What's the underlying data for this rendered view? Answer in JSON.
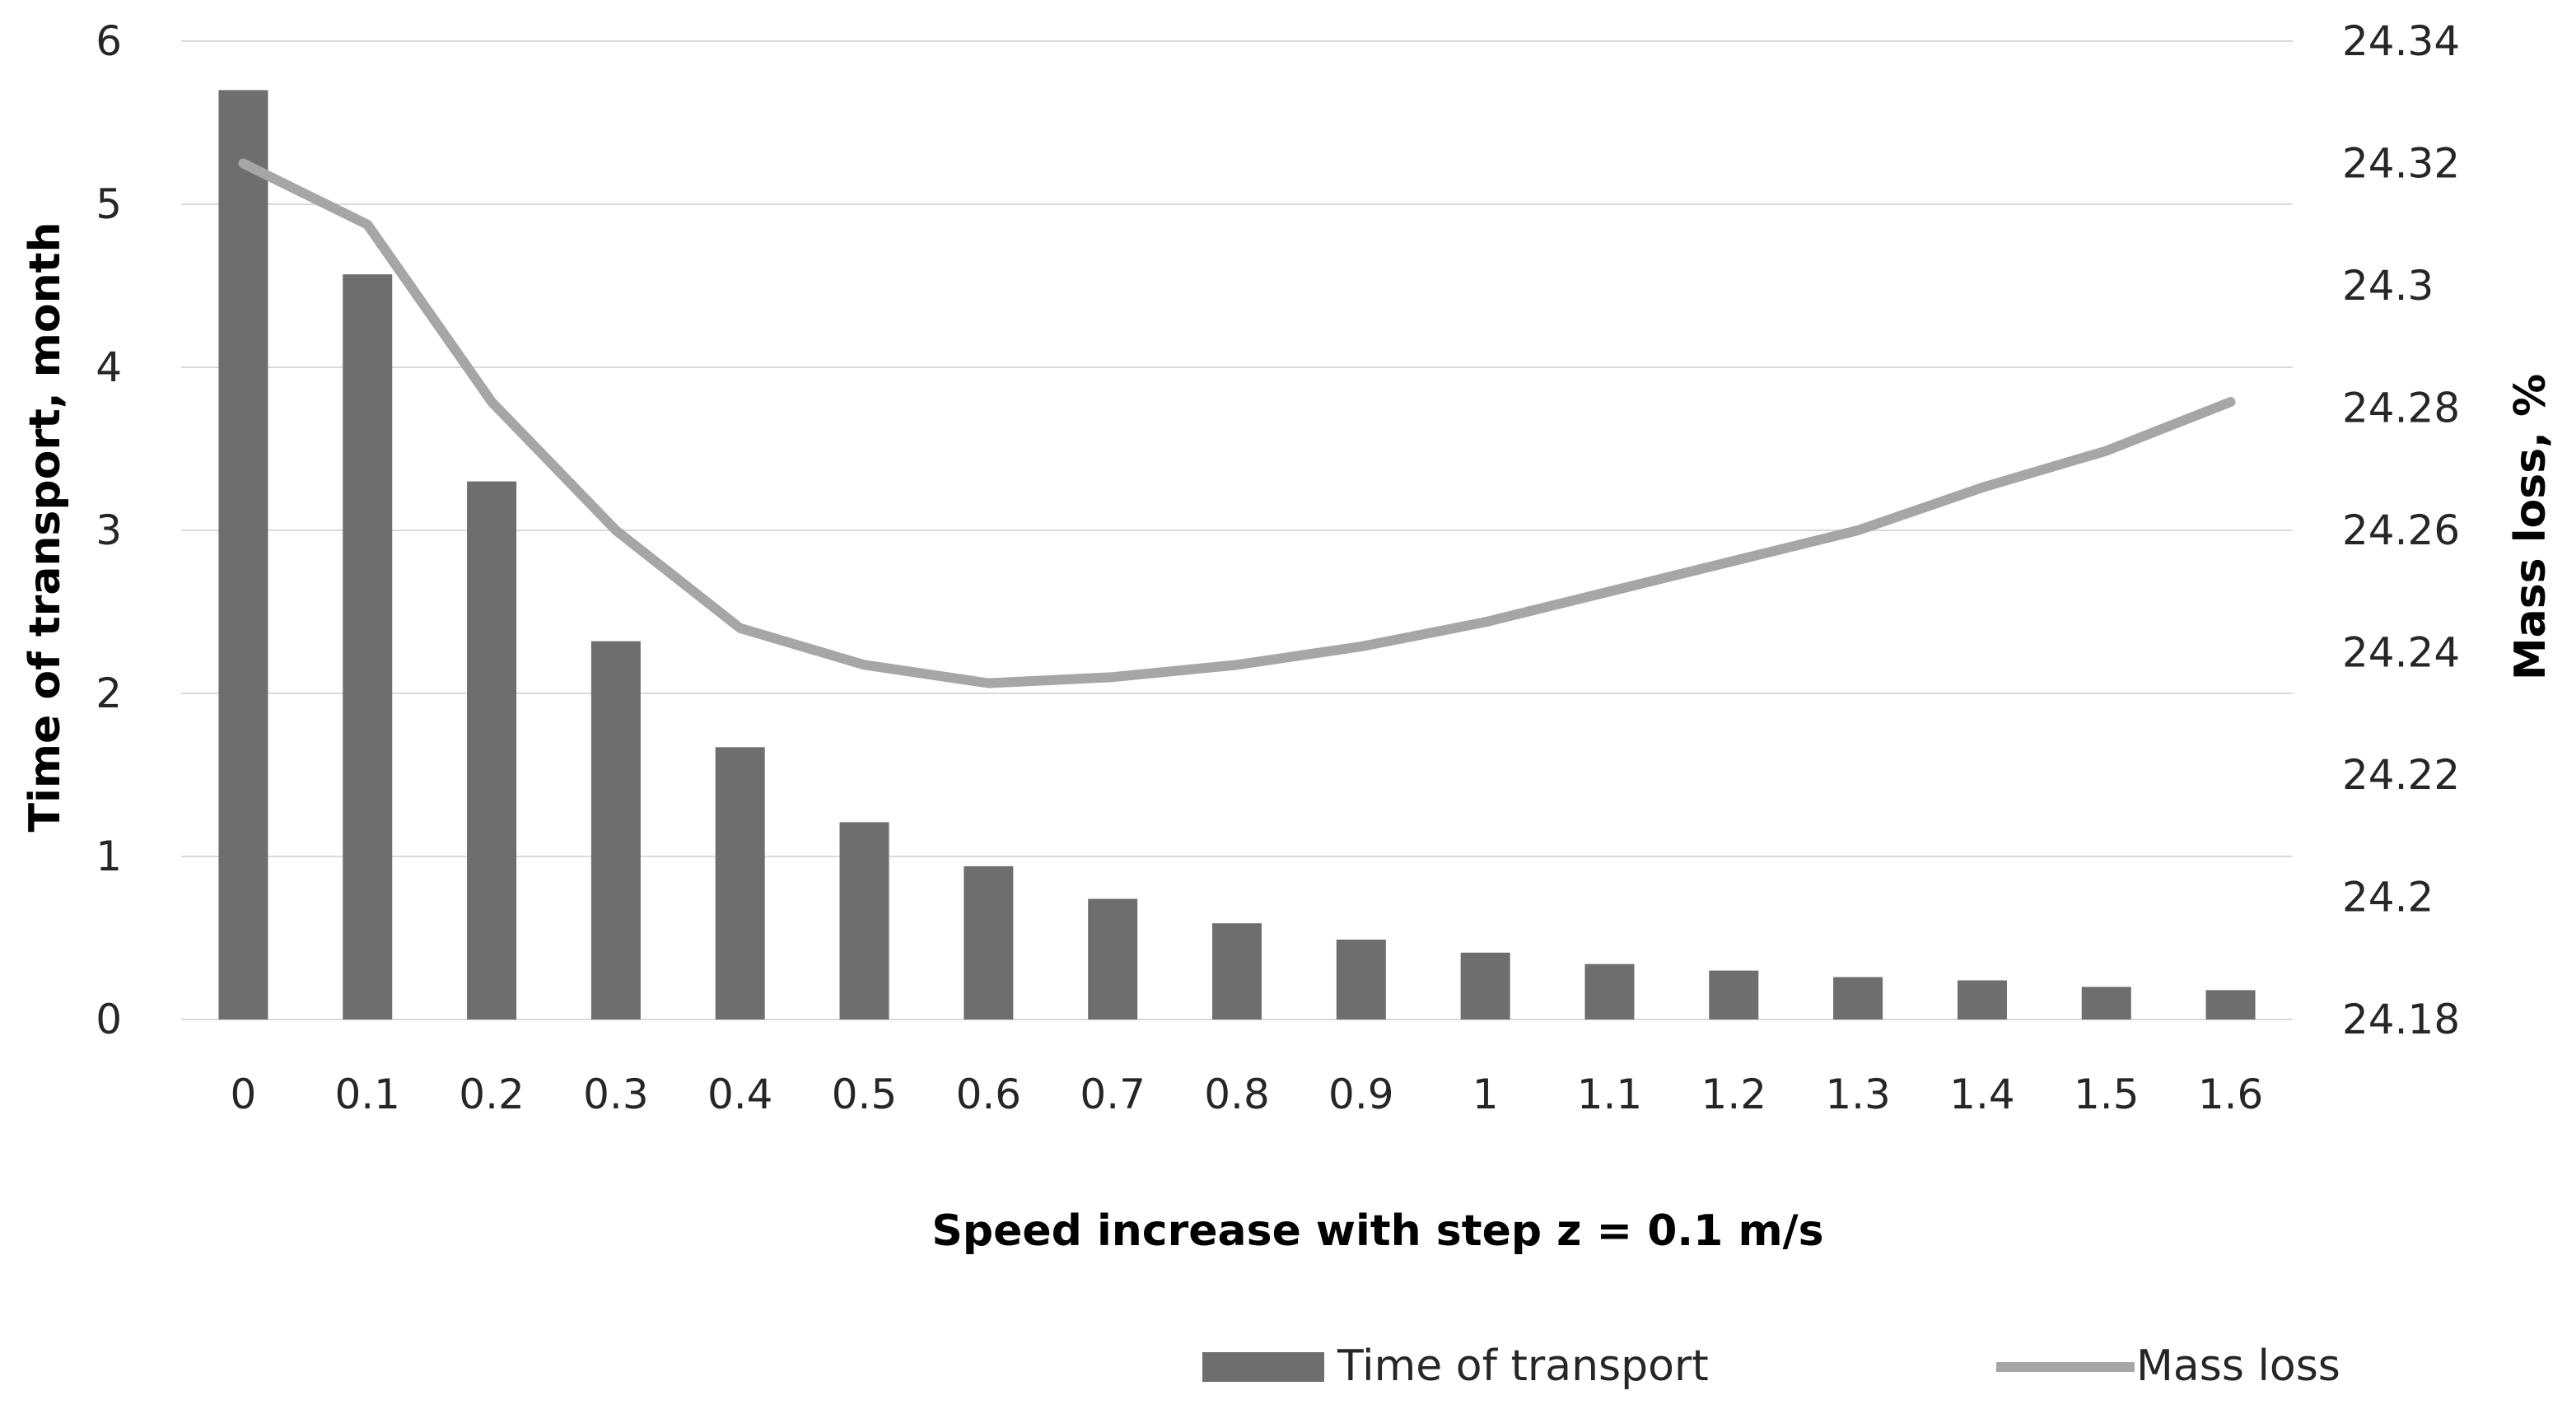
{
  "chart_data": {
    "type": "bar+line",
    "title": "",
    "xlabel": "Speed increase with step z = 0.1 m/s",
    "ylabel": "Time of transport, month",
    "y2label": "Mass loss, %",
    "categories": [
      "0",
      "0.1",
      "0.2",
      "0.3",
      "0.4",
      "0.5",
      "0.6",
      "0.7",
      "0.8",
      "0.9",
      "1",
      "1.1",
      "1.2",
      "1.3",
      "1.4",
      "1.5",
      "1.6"
    ],
    "ylim": [
      0,
      6
    ],
    "yticks": [
      "0",
      "1",
      "2",
      "3",
      "4",
      "5",
      "6"
    ],
    "y2lim": [
      24.18,
      24.34
    ],
    "y2ticks": [
      "24.18",
      "24.2",
      "24.22",
      "24.24",
      "24.26",
      "24.28",
      "24.3",
      "24.32",
      "24.34"
    ],
    "grid": true,
    "legend_position": "bottom-right",
    "series": [
      {
        "name": "Time of transport",
        "type": "bar",
        "axis": "left",
        "color": "#6e6e6e",
        "values": [
          5.7,
          4.57,
          3.3,
          2.32,
          1.67,
          1.21,
          0.94,
          0.74,
          0.59,
          0.49,
          0.41,
          0.34,
          0.3,
          0.26,
          0.24,
          0.2,
          0.18
        ]
      },
      {
        "name": "Mass loss",
        "type": "line",
        "axis": "right",
        "color": "#a6a6a6",
        "values": [
          24.32,
          24.31,
          24.281,
          24.26,
          24.244,
          24.238,
          24.235,
          24.236,
          24.238,
          24.241,
          24.245,
          24.25,
          24.255,
          24.26,
          24.267,
          24.273,
          24.281
        ]
      }
    ]
  }
}
